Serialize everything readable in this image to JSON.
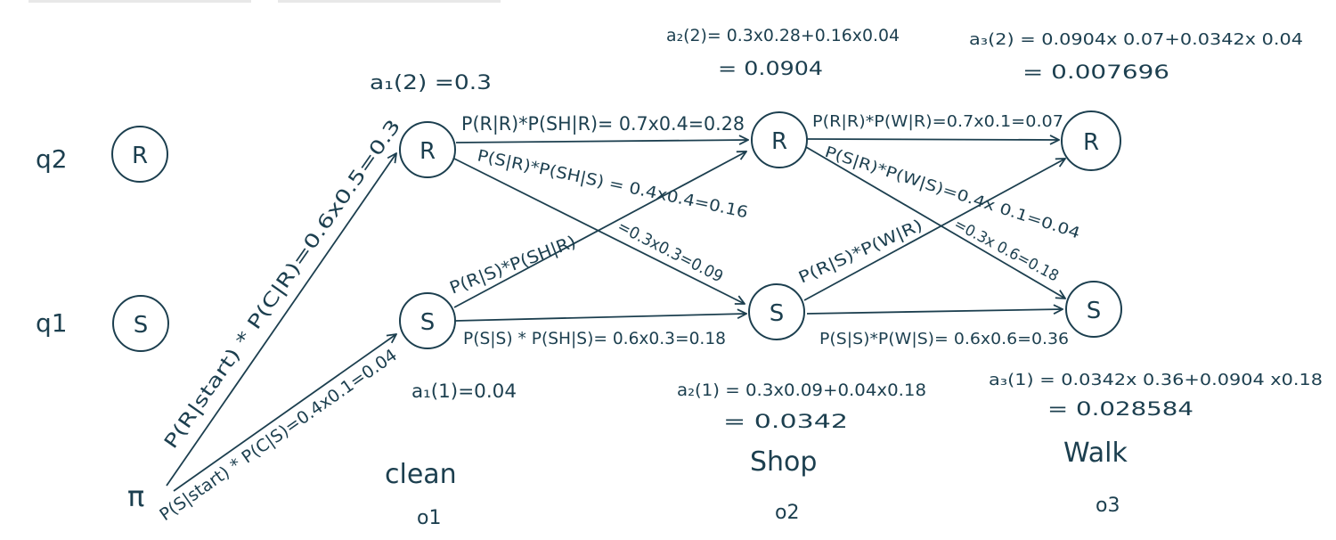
{
  "states": {
    "q2": "q2",
    "q1": "q1",
    "R": "R",
    "S": "S",
    "pi": "π"
  },
  "observations": [
    {
      "word": "clean",
      "index": "o1"
    },
    {
      "word": "Shop",
      "index": "o2"
    },
    {
      "word": "Walk",
      "index": "o3"
    }
  ],
  "alpha": {
    "a1_2": "a₁(2) =0.3",
    "a1_1": "a₁(1)=0.04",
    "a2_2_expr": "a₂(2)= 0.3x0.28+0.16x0.04",
    "a2_2_val": "= 0.0904",
    "a2_1_expr": "a₂(1) = 0.3x0.09+0.04x0.18",
    "a2_1_val": "= 0.0342",
    "a3_2_expr": "a₃(2) = 0.0904x 0.07+0.0342x 0.04",
    "a3_2_val": "= 0.007696",
    "a3_1_expr": "a₃(1) = 0.0342x 0.36+0.0904 x0.18",
    "a3_1_val": "= 0.028584"
  },
  "edges": {
    "pi_R": "P(R|start) * P(C|R)=0.6x0.5=0.3",
    "pi_S": "P(S|start) * P(C|S)=0.4x0.1=0.04",
    "R1_R2": "P(R|R)*P(SH|R)= 0.7x0.4=0.28",
    "R1_S2": "P(S|R)*P(SH|S) = 0.4x0.4=0.16",
    "R1_S2_b": "=0.3x0.3=0.09",
    "S1_R2": "P(R|S)*P(SH|R)",
    "S1_S2": "P(S|S) * P(SH|S)= 0.6x0.3=0.18",
    "R2_R3": "P(R|R)*P(W|R)=0.7x0.1=0.07",
    "R2_S3": "P(S|R)*P(W|S)=0.4x 0.1=0.04",
    "R2_S3_b": "=0.3x 0.6=0.18",
    "S2_R3": "P(R|S)*P(W|R)",
    "S2_S3": "P(S|S)*P(W|S)= 0.6x0.6=0.36"
  }
}
